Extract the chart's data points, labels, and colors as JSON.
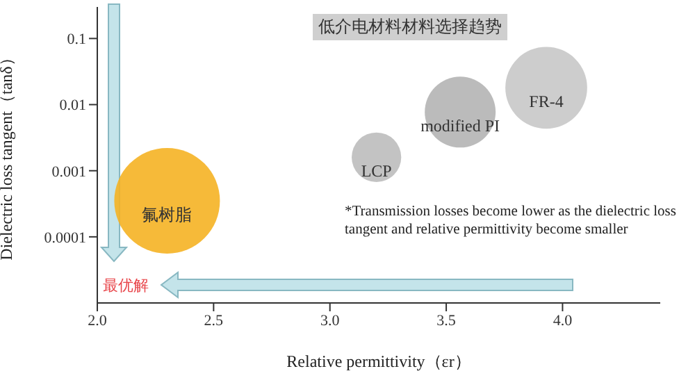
{
  "chart_data": {
    "type": "bubble",
    "title": "低介电材料材料选择趋势",
    "xlabel": "Relative permittivity（εr）",
    "ylabel": "Dielectric loss tangent（tanδ）",
    "log": "y",
    "xlim": [
      2.0,
      4.42
    ],
    "ylim": [
      1e-05,
      0.3
    ],
    "xticks": [
      {
        "value": 2,
        "label": "2.0"
      },
      {
        "value": 2.5,
        "label": "2.5"
      },
      {
        "value": 3,
        "label": "3.0"
      },
      {
        "value": 3.5,
        "label": "3.5"
      },
      {
        "value": 4,
        "label": "4.0"
      }
    ],
    "yticks": [
      {
        "value": 0.0001,
        "label": "0.0001"
      },
      {
        "value": 0.001,
        "label": "0.001"
      },
      {
        "value": 0.01,
        "label": "0.01"
      },
      {
        "value": 0.1,
        "label": "0.1"
      }
    ],
    "grid": false,
    "legend": false,
    "series": [
      {
        "name": "FR-4",
        "color": "#c8c8c8",
        "x": [
          3.93
        ],
        "values": [
          0.018
        ],
        "sizes": [
          0.6
        ]
      },
      {
        "name": "modified PI",
        "color": "#b4b4b4",
        "x": [
          3.56
        ],
        "values": [
          0.0077
        ],
        "sizes": [
          0.45
        ]
      },
      {
        "name": "LCP",
        "color": "#bdbdbd",
        "x": [
          3.2
        ],
        "values": [
          0.0016
        ],
        "sizes": [
          0.22
        ]
      },
      {
        "name": "氟树脂",
        "color": "#f5b324",
        "x": [
          2.3
        ],
        "values": [
          0.00035
        ],
        "sizes": [
          1
        ]
      }
    ],
    "annotations": [
      "*Transmission losses become lower as the dielectric loss tangent and relative permittivity become smaller",
      "最优解"
    ]
  }
}
